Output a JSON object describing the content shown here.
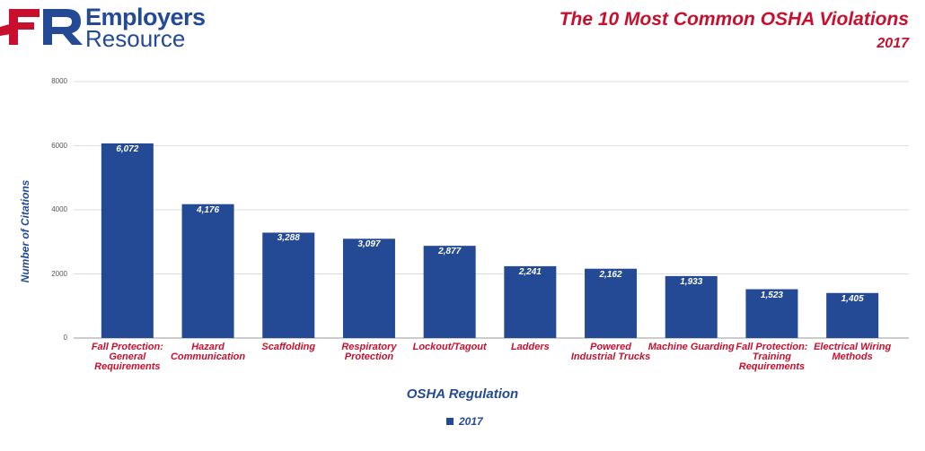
{
  "logo": {
    "line1": "Employers",
    "line2": "Resource"
  },
  "chart_data": {
    "type": "bar",
    "title": "The 10 Most Common OSHA Violations",
    "subtitle": "2017",
    "x_label": "OSHA Regulation",
    "y_label": "Number of Citations",
    "categories": [
      "Fall Protection: General Requirements",
      "Hazard Communication",
      "Scaffolding",
      "Respiratory Protection",
      "Lockout/Tagout",
      "Ladders",
      "Powered Industrial Trucks",
      "Machine Guarding",
      "Fall Protection: Training Requirements",
      "Electrical Wiring Methods"
    ],
    "series": [
      {
        "name": "2017",
        "color": "#244a96",
        "values": [
          6072,
          4176,
          3288,
          3097,
          2877,
          2241,
          2162,
          1933,
          1523,
          1405
        ],
        "value_labels": [
          "6,072",
          "4,176",
          "3,288",
          "3,097",
          "2,877",
          "2,241",
          "2,162",
          "1,933",
          "1,523",
          "1,405"
        ]
      }
    ],
    "ylim": [
      0,
      8000
    ],
    "yticks": [
      0,
      2000,
      4000,
      6000,
      8000
    ],
    "grid": true,
    "legend": "bottom"
  }
}
